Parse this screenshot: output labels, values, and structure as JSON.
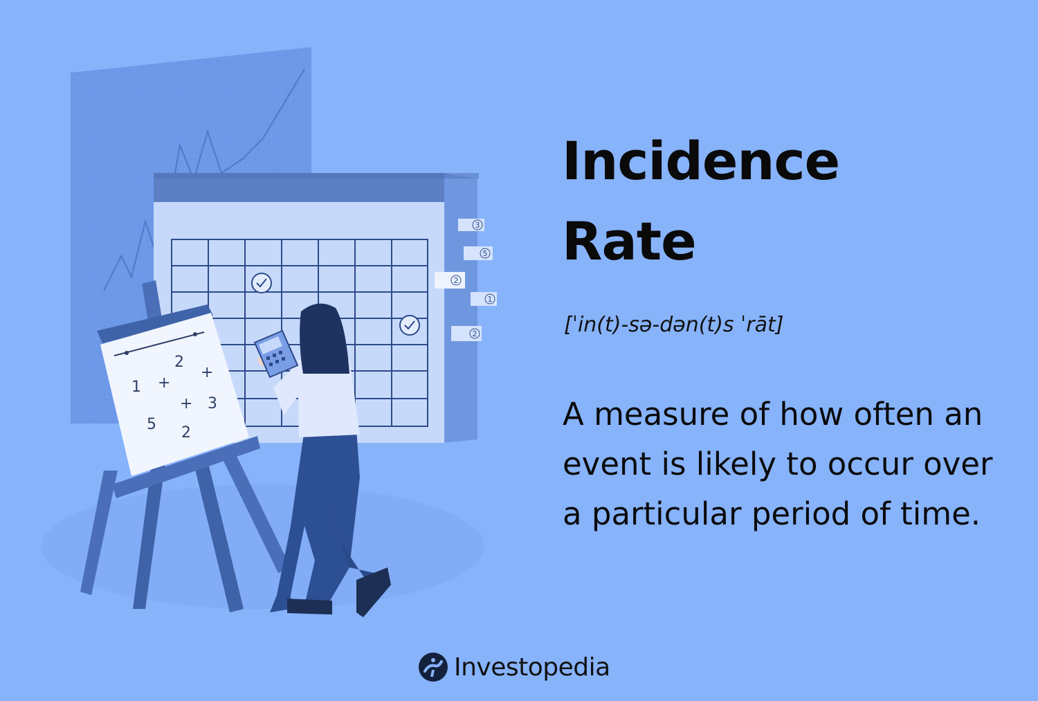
{
  "term": {
    "title_line1": "Incidence",
    "title_line2": "Rate",
    "pronunciation": "[ˈin(t)-sə-dən(t)s ˈrāt]",
    "definition": "A measure of how often an event is likely to occur over a particular period of time."
  },
  "brand": {
    "name": "Investopedia",
    "logo_icon": "investopedia-logo-icon"
  },
  "illustration": {
    "tab_labels": [
      "3",
      "5",
      "2",
      "1",
      "2"
    ],
    "easel_math": [
      "2",
      "+",
      "1",
      "+",
      "+",
      "3",
      "5",
      "2"
    ]
  },
  "colors": {
    "background": "#87b3fb",
    "text": "#0a0a0a"
  }
}
